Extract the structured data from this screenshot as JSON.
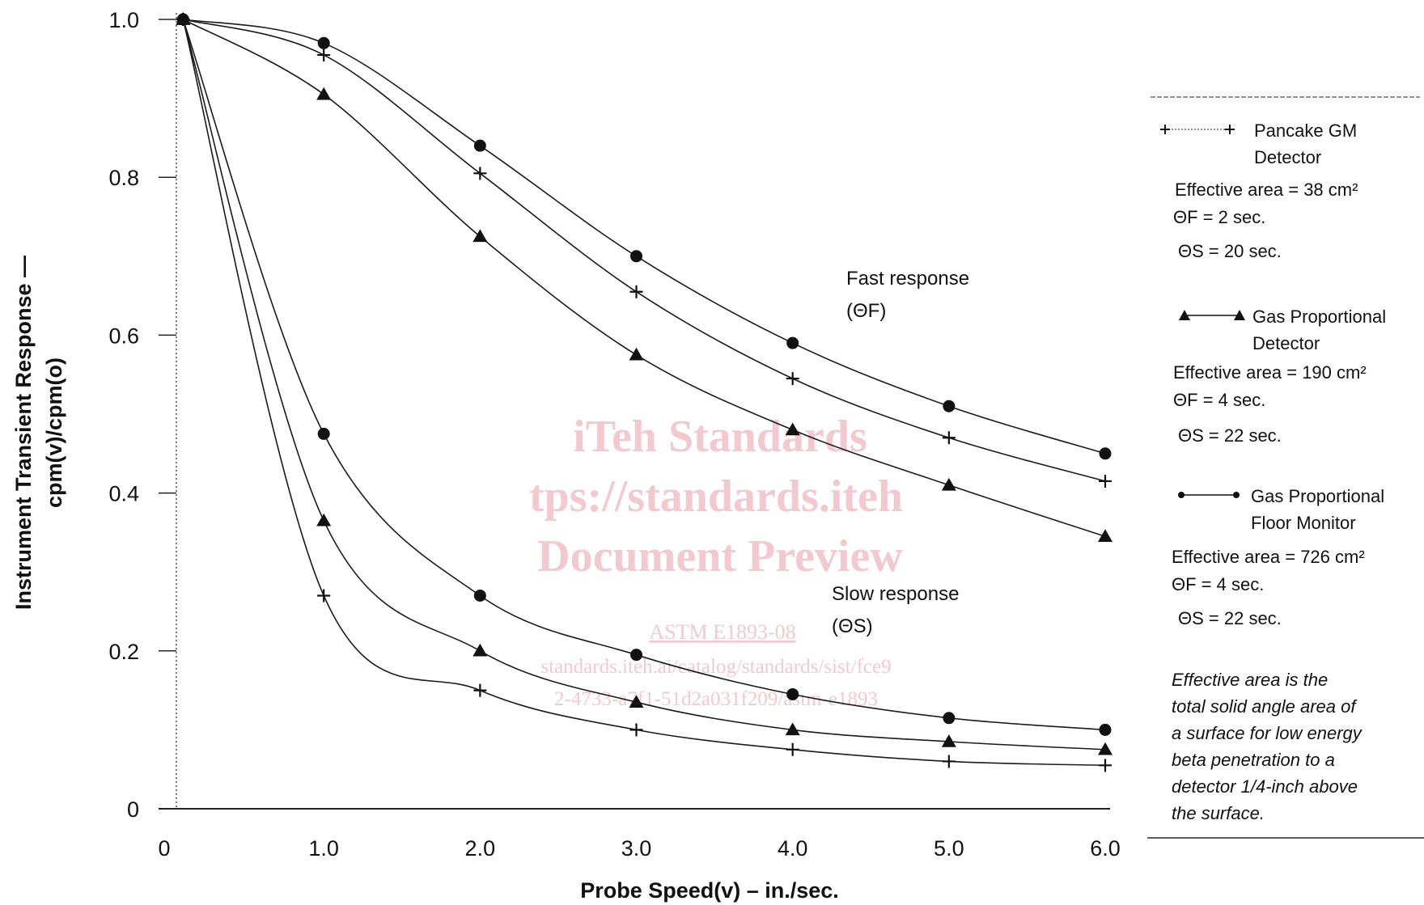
{
  "chart_data": {
    "type": "line",
    "xlabel": "Probe Speed(v) – in./sec.",
    "ylabel_line1": "Instrument Transient Response —",
    "ylabel_line2": "cpm(v)/cpm(o)",
    "x_tick_labels": [
      "0",
      "1.0",
      "2.0",
      "3.0",
      "4.0",
      "5.0",
      "6.0"
    ],
    "x_tick_values": [
      0,
      1,
      2,
      3,
      4,
      5,
      6
    ],
    "y_tick_labels": [
      "0",
      "0.2",
      "0.4",
      "0.6",
      "0.8",
      "1.0"
    ],
    "y_tick_values": [
      0,
      0.2,
      0.4,
      0.6,
      0.8,
      1.0
    ],
    "xlim": [
      0,
      6
    ],
    "ylim": [
      0,
      1.0
    ],
    "x": [
      0.1,
      1,
      2,
      3,
      4,
      5,
      6
    ],
    "series": [
      {
        "group": "fast",
        "marker": "circle",
        "values": [
          1.0,
          0.97,
          0.84,
          0.7,
          0.59,
          0.51,
          0.45
        ]
      },
      {
        "group": "fast",
        "marker": "plus",
        "values": [
          1.0,
          0.955,
          0.805,
          0.655,
          0.545,
          0.47,
          0.415
        ]
      },
      {
        "group": "fast",
        "marker": "triangle",
        "values": [
          1.0,
          0.905,
          0.725,
          0.575,
          0.48,
          0.41,
          0.345
        ]
      },
      {
        "group": "slow",
        "marker": "circle",
        "values": [
          1.0,
          0.475,
          0.27,
          0.195,
          0.145,
          0.115,
          0.1
        ]
      },
      {
        "group": "slow",
        "marker": "triangle",
        "values": [
          1.0,
          0.365,
          0.2,
          0.135,
          0.1,
          0.085,
          0.075
        ]
      },
      {
        "group": "slow",
        "marker": "plus",
        "values": [
          1.0,
          0.27,
          0.15,
          0.1,
          0.075,
          0.06,
          0.055
        ]
      }
    ],
    "annotations": {
      "fast_label": "Fast response",
      "fast_symbol": "(ΘF)",
      "slow_label": "Slow response",
      "slow_symbol": "(ΘS)"
    },
    "legend": [
      {
        "marker": "plus",
        "name_line1": "Pancake GM",
        "name_line2": "Detector",
        "area": "Effective area = 38 cm²",
        "theta_f": "ΘF = 2 sec.",
        "theta_s": "ΘS = 20 sec."
      },
      {
        "marker": "triangle",
        "name_line1": "Gas Proportional",
        "name_line2": "Detector",
        "area": "Effective area = 190 cm²",
        "theta_f": "ΘF = 4 sec.",
        "theta_s": "ΘS = 22 sec."
      },
      {
        "marker": "circle",
        "name_line1": "Gas Proportional",
        "name_line2": "Floor Monitor",
        "area": "Effective area = 726 cm²",
        "theta_f": "ΘF = 4 sec.",
        "theta_s": "ΘS = 22 sec."
      }
    ],
    "legend_note": [
      "Effective area is the",
      "total solid angle area of",
      "a surface for low energy",
      "beta penetration to a",
      "detector 1/4-inch above",
      "the surface."
    ],
    "legend_placement": "right",
    "grid": false
  },
  "watermark": {
    "line1": "iTeh Standards",
    "line2": "tps://standards.iteh",
    "line3": "Document Preview",
    "line4": "ASTM E1893-08",
    "line5": "standards.iteh.ai/catalog/standards/sist/fce9",
    "line6": "2-4733-a7f1-51d2a031f209/astm-e1893"
  }
}
